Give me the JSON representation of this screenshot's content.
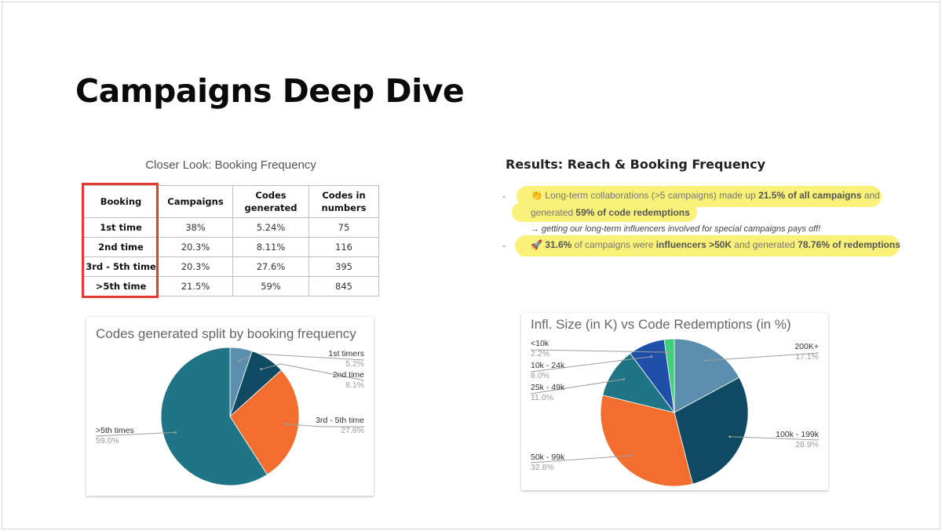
{
  "slide": {
    "title": "Campaigns Deep Dive"
  },
  "table": {
    "caption": "Closer Look: Booking Frequency",
    "headers": [
      "Booking",
      "Campaigns",
      "Codes generated",
      "Codes in numbers"
    ],
    "rows": [
      [
        "1st time",
        "38%",
        "5.24%",
        "75"
      ],
      [
        "2nd time",
        "20.3%",
        "8.11%",
        "116"
      ],
      [
        "3rd - 5th time",
        "20.3%",
        "27.6%",
        "395"
      ],
      [
        ">5th time",
        "21.5%",
        "59%",
        "845"
      ]
    ],
    "highlight_color": "#e53935"
  },
  "results": {
    "heading": "Results: Reach & Booking Frequency",
    "bullet_dash": "-",
    "bullet1": {
      "icon": "👏",
      "line1_pre": "Long-term collaborations (>5 campaigns) made up ",
      "line1_bold": "21.5% of all campaigns",
      "line1_post": " and",
      "line2_pre": "generated ",
      "line2_bold": "59% of code redemptions"
    },
    "note": "→ getting our long-term influencers involved for special campaigns pays off!",
    "bullet2": {
      "icon": "🚀",
      "bold1": "31.6%",
      "text1": " of campaigns were ",
      "bold2": "influencers >50K",
      "text2": " and generated ",
      "bold3": "78.76% of redemptions"
    },
    "highlight_color": "#faf178"
  },
  "chart_data": [
    {
      "type": "pie",
      "title": "Codes generated split by booking frequency",
      "slices": [
        {
          "label": "1st timers",
          "value": 5.2,
          "display": "5.2%",
          "color": "#5b8fad"
        },
        {
          "label": "2nd time",
          "value": 8.1,
          "display": "8.1%",
          "color": "#0f4a63"
        },
        {
          "label": "3rd - 5th time",
          "value": 27.6,
          "display": "27.6%",
          "color": "#f26e2e"
        },
        {
          "label": ">5th times",
          "value": 59.0,
          "display": "59.0%",
          "color": "#1f7585"
        }
      ]
    },
    {
      "type": "pie",
      "title": "Infl. Size (in K) vs Code Redemptions (in %)",
      "slices": [
        {
          "label": "200K+",
          "value": 17.1,
          "display": "17.1%",
          "color": "#5b8fad"
        },
        {
          "label": "100k - 199k",
          "value": 28.9,
          "display": "28.9%",
          "color": "#0f4a63"
        },
        {
          "label": "50k - 99k",
          "value": 32.8,
          "display": "32.8%",
          "color": "#f26e2e"
        },
        {
          "label": "25k - 49k",
          "value": 11.0,
          "display": "11.0%",
          "color": "#1f7585"
        },
        {
          "label": "10k - 24k",
          "value": 8.0,
          "display": "8.0%",
          "color": "#1f4fa8"
        },
        {
          "label": "<10k",
          "value": 2.2,
          "display": "2.2%",
          "color": "#3fd17a"
        }
      ]
    }
  ]
}
